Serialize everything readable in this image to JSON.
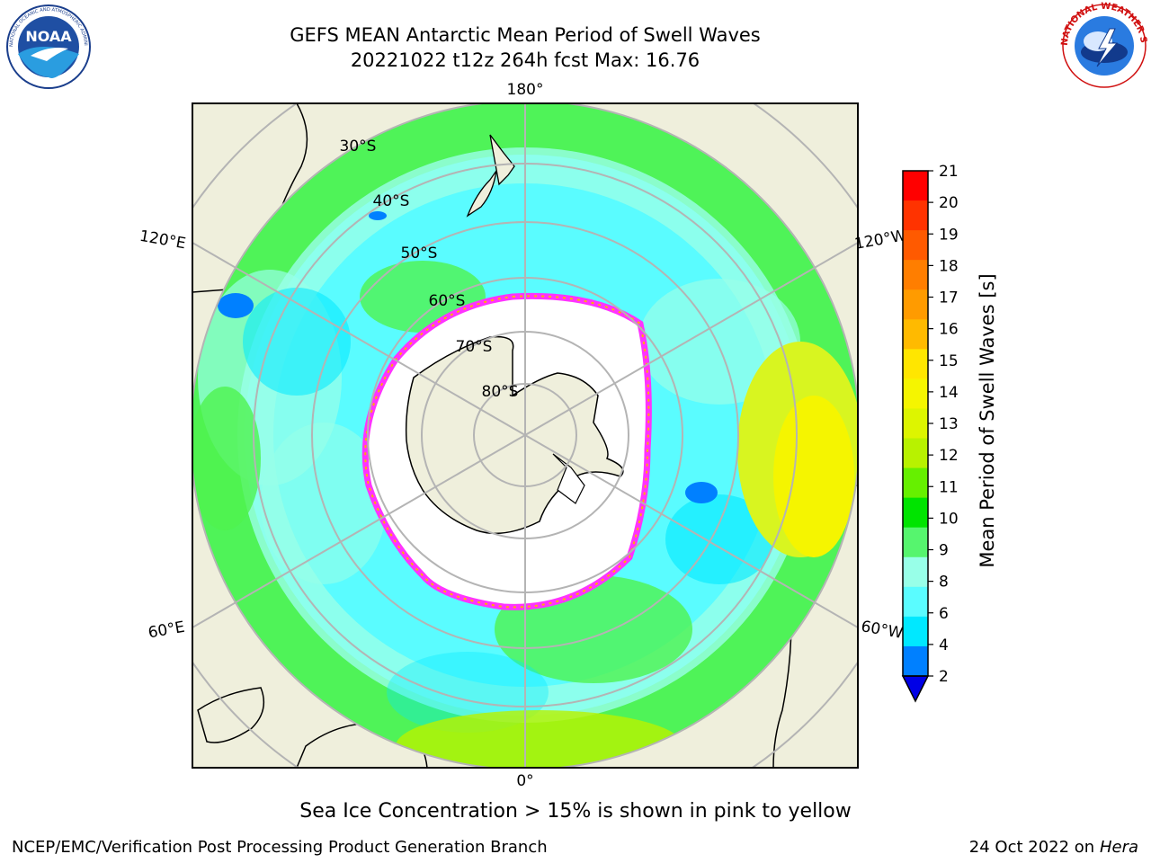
{
  "header": {
    "title_line1": "GEFS MEAN Antarctic Mean Period of Swell Waves",
    "title_line2": "20221022 t12z 264h fcst   Max: 16.76"
  },
  "logos": {
    "noaa_text": "NOAA",
    "noaa_ring": "NATIONAL OCEANIC AND ATMOSPHERIC ADMINISTRATION · U.S. DEPARTMENT OF COMMERCE",
    "nws_ring": "NATIONAL WEATHER SERVICE"
  },
  "map": {
    "projection": "south-polar-stereographic",
    "longitude_labels": [
      "180°",
      "120°E",
      "120°W",
      "60°E",
      "60°W",
      "0°"
    ],
    "latitude_labels": [
      "30°S",
      "40°S",
      "50°S",
      "60°S",
      "70°S",
      "80°S"
    ],
    "sea_ice_colors": [
      "#ff33ff",
      "#ffb000",
      "#ffee00"
    ],
    "land_color": "#efefdc",
    "grid_color": "#b4b4b4"
  },
  "colorbar": {
    "label": "Mean Period of Swell Waves [s]",
    "ticks": [
      "21",
      "20",
      "19",
      "18",
      "17",
      "16",
      "15",
      "14",
      "13",
      "12",
      "11",
      "10",
      "9",
      "8",
      "6",
      "4",
      "2"
    ],
    "colors": [
      "#ff0000",
      "#ff3300",
      "#ff5a00",
      "#ff7e00",
      "#ff9b00",
      "#ffba00",
      "#ffe600",
      "#f5f500",
      "#ddf500",
      "#b8f200",
      "#66f000",
      "#00e400",
      "#56f56e",
      "#98ffe8",
      "#5afcff",
      "#00e8ff",
      "#0080ff"
    ],
    "under_color": "#0000e6"
  },
  "footer": {
    "subtitle": "Sea Ice Concentration > 15% is shown in pink to yellow",
    "credit": "NCEP/EMC/Verification Post Processing Product Generation Branch",
    "date_text": "24 Oct 2022 on",
    "machine": "Hera"
  }
}
